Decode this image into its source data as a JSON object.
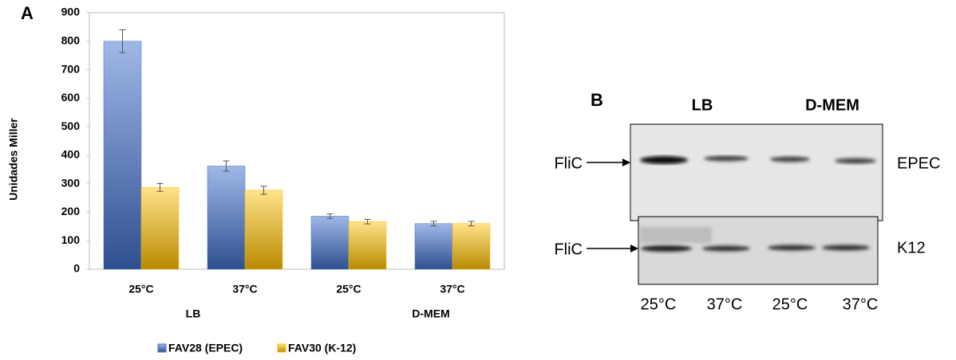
{
  "chart_data": {
    "type": "bar",
    "panel_label": "A",
    "y_label": "Unidades Miller",
    "categories": [
      "25°C",
      "37°C",
      "25°C",
      "37°C"
    ],
    "groups": [
      "LB",
      "D-MEM"
    ],
    "series": [
      {
        "name": "FAV28 (EPEC)",
        "color": "#4472c4",
        "values": [
          800,
          362,
          186,
          160
        ],
        "errors": [
          40,
          18,
          8,
          8
        ]
      },
      {
        "name": "FAV30 (K-12)",
        "color": "#ffc000",
        "values": [
          287,
          277,
          167,
          160
        ],
        "errors": [
          14,
          14,
          8,
          8
        ]
      }
    ],
    "ylim": [
      0,
      900
    ],
    "yticks": [
      0,
      100,
      200,
      300,
      400,
      500,
      600,
      700,
      800,
      900
    ],
    "grid": false,
    "legend": "bottom"
  },
  "blot": {
    "panel_label": "B",
    "media": [
      "LB",
      "D-MEM"
    ],
    "protein": [
      "FliC",
      "FliC"
    ],
    "strains": [
      "EPEC",
      "K12"
    ],
    "lanes": [
      "25°C",
      "37°C",
      "25°C",
      "37°C"
    ]
  }
}
